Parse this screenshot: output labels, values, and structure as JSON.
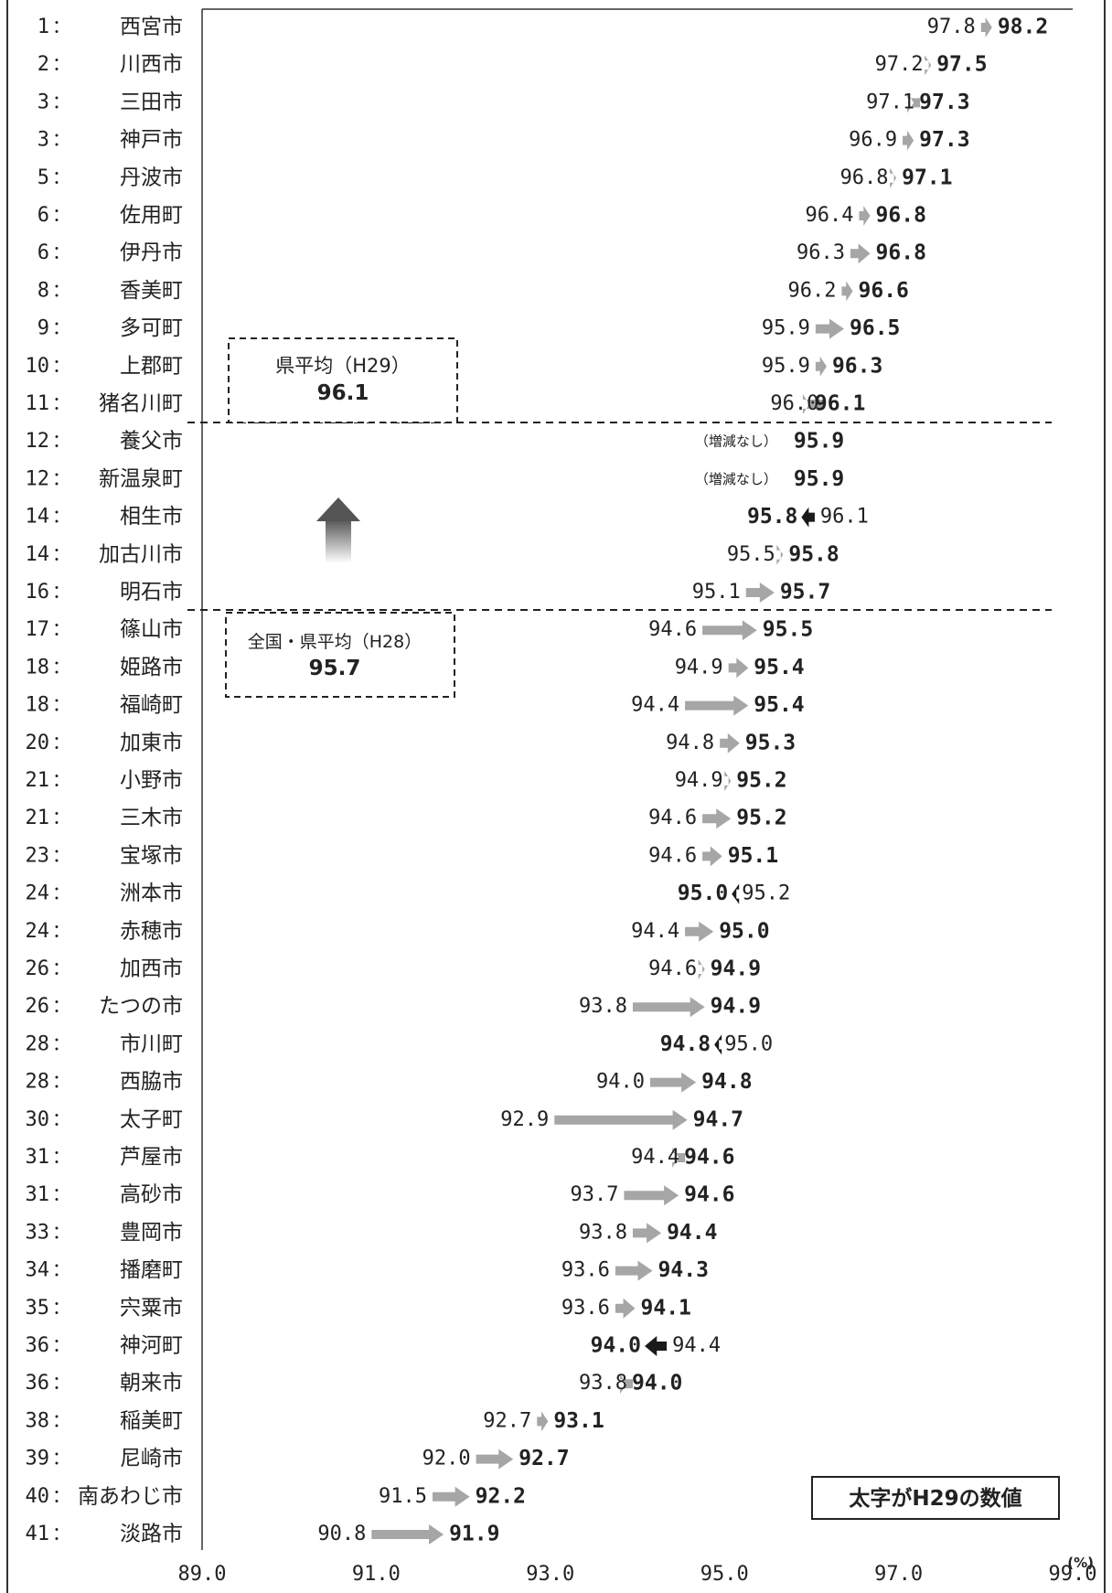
{
  "chart_data": {
    "type": "dumbbell-arrow",
    "unit_label": "(%)",
    "xlim": [
      89.0,
      99.0
    ],
    "x_ticks": [
      "89.0",
      "91.0",
      "93.0",
      "95.0",
      "97.0",
      "99.0"
    ],
    "legend_note": "太字がH29の数値",
    "no_change_label": "（増減なし）",
    "reference_boxes": [
      {
        "label": "県平均（H29）",
        "value": "96.1"
      },
      {
        "label": "全国・県平均（H28）",
        "value": "95.7"
      }
    ],
    "colors": {
      "increase": "#a6a6a6",
      "decrease": "#1a1a1a",
      "text": "#222222",
      "increase_hint": "#555555"
    },
    "rows": [
      {
        "rank": "1",
        "name": "西宮市",
        "h28": 97.8,
        "h29": 98.2
      },
      {
        "rank": "2",
        "name": "川西市",
        "h28": 97.2,
        "h29": 97.5
      },
      {
        "rank": "3",
        "name": "三田市",
        "h28": 97.1,
        "h29": 97.3
      },
      {
        "rank": "3",
        "name": "神戸市",
        "h28": 96.9,
        "h29": 97.3
      },
      {
        "rank": "5",
        "name": "丹波市",
        "h28": 96.8,
        "h29": 97.1
      },
      {
        "rank": "6",
        "name": "佐用町",
        "h28": 96.4,
        "h29": 96.8
      },
      {
        "rank": "6",
        "name": "伊丹市",
        "h28": 96.3,
        "h29": 96.8
      },
      {
        "rank": "8",
        "name": "香美町",
        "h28": 96.2,
        "h29": 96.6
      },
      {
        "rank": "9",
        "name": "多可町",
        "h28": 95.9,
        "h29": 96.5
      },
      {
        "rank": "10",
        "name": "上郡町",
        "h28": 95.9,
        "h29": 96.3
      },
      {
        "rank": "11",
        "name": "猪名川町",
        "h28": 96.0,
        "h29": 96.1
      },
      {
        "rank": "12",
        "name": "養父市",
        "h28": 95.9,
        "h29": 95.9
      },
      {
        "rank": "12",
        "name": "新温泉町",
        "h28": 95.9,
        "h29": 95.9
      },
      {
        "rank": "14",
        "name": "相生市",
        "h28": 96.1,
        "h29": 95.8
      },
      {
        "rank": "14",
        "name": "加古川市",
        "h28": 95.5,
        "h29": 95.8
      },
      {
        "rank": "16",
        "name": "明石市",
        "h28": 95.1,
        "h29": 95.7
      },
      {
        "rank": "17",
        "name": "篠山市",
        "h28": 94.6,
        "h29": 95.5
      },
      {
        "rank": "18",
        "name": "姫路市",
        "h28": 94.9,
        "h29": 95.4
      },
      {
        "rank": "18",
        "name": "福崎町",
        "h28": 94.4,
        "h29": 95.4
      },
      {
        "rank": "20",
        "name": "加東市",
        "h28": 94.8,
        "h29": 95.3
      },
      {
        "rank": "21",
        "name": "小野市",
        "h28": 94.9,
        "h29": 95.2
      },
      {
        "rank": "21",
        "name": "三木市",
        "h28": 94.6,
        "h29": 95.2
      },
      {
        "rank": "23",
        "name": "宝塚市",
        "h28": 94.6,
        "h29": 95.1
      },
      {
        "rank": "24",
        "name": "洲本市",
        "h28": 95.2,
        "h29": 95.0
      },
      {
        "rank": "24",
        "name": "赤穂市",
        "h28": 94.4,
        "h29": 95.0
      },
      {
        "rank": "26",
        "name": "加西市",
        "h28": 94.6,
        "h29": 94.9
      },
      {
        "rank": "26",
        "name": "たつの市",
        "h28": 93.8,
        "h29": 94.9
      },
      {
        "rank": "28",
        "name": "市川町",
        "h28": 95.0,
        "h29": 94.8
      },
      {
        "rank": "28",
        "name": "西脇市",
        "h28": 94.0,
        "h29": 94.8
      },
      {
        "rank": "30",
        "name": "太子町",
        "h28": 92.9,
        "h29": 94.7
      },
      {
        "rank": "31",
        "name": "芦屋市",
        "h28": 94.4,
        "h29": 94.6
      },
      {
        "rank": "31",
        "name": "高砂市",
        "h28": 93.7,
        "h29": 94.6
      },
      {
        "rank": "33",
        "name": "豊岡市",
        "h28": 93.8,
        "h29": 94.4
      },
      {
        "rank": "34",
        "name": "播磨町",
        "h28": 93.6,
        "h29": 94.3
      },
      {
        "rank": "35",
        "name": "宍粟市",
        "h28": 93.6,
        "h29": 94.1
      },
      {
        "rank": "36",
        "name": "神河町",
        "h28": 94.4,
        "h29": 94.0
      },
      {
        "rank": "36",
        "name": "朝来市",
        "h28": 93.8,
        "h29": 94.0
      },
      {
        "rank": "38",
        "name": "稲美町",
        "h28": 92.7,
        "h29": 93.1
      },
      {
        "rank": "39",
        "name": "尼崎市",
        "h28": 92.0,
        "h29": 92.7
      },
      {
        "rank": "40",
        "name": "南あわじ市",
        "h28": 91.5,
        "h29": 92.2
      },
      {
        "rank": "41",
        "name": "淡路市",
        "h28": 90.8,
        "h29": 91.9
      }
    ]
  }
}
